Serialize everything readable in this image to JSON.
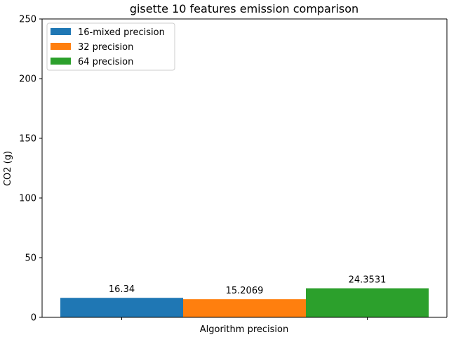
{
  "chart_data": {
    "type": "bar",
    "title": "gisette 10 features emission comparison",
    "xlabel": "Algorithm precision",
    "ylabel": "CO2 (g)",
    "ylim": [
      0,
      250
    ],
    "yticks": [
      0,
      50,
      100,
      150,
      200,
      250
    ],
    "categories": [
      ""
    ],
    "series": [
      {
        "name": "16-mixed precision",
        "values": [
          16.34
        ],
        "label": "16.34",
        "color": "#1f77b4"
      },
      {
        "name": "32 precision",
        "values": [
          15.2069
        ],
        "label": "15.2069",
        "color": "#ff7f0e"
      },
      {
        "name": "64 precision",
        "values": [
          24.3531
        ],
        "label": "24.3531",
        "color": "#2ca02c"
      }
    ],
    "legend_position": "top-left",
    "grid": false
  }
}
